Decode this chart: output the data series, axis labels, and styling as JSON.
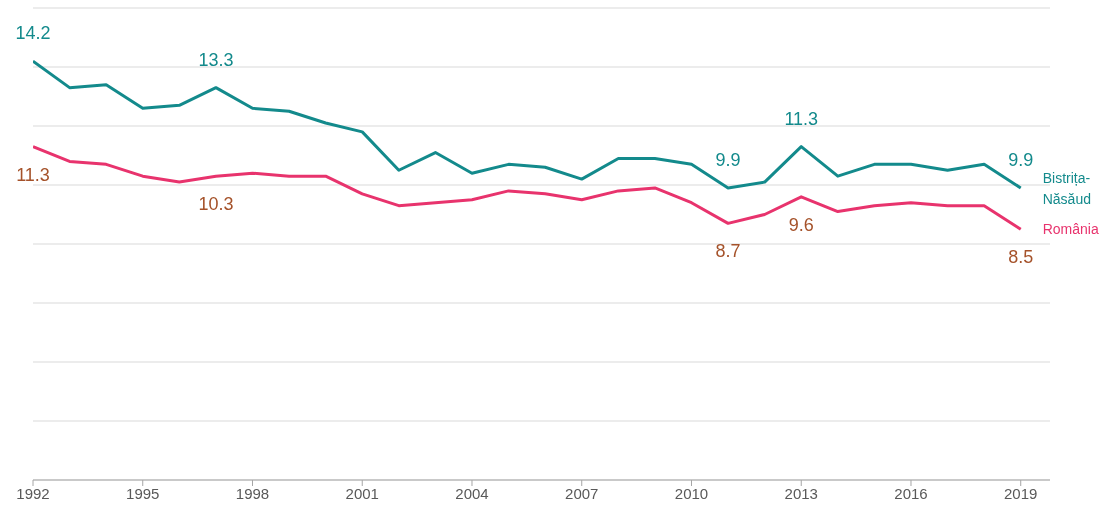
{
  "chart_data": {
    "type": "line",
    "x": [
      1992,
      1993,
      1994,
      1995,
      1996,
      1997,
      1998,
      1999,
      2000,
      2001,
      2002,
      2003,
      2004,
      2005,
      2006,
      2007,
      2008,
      2009,
      2010,
      2011,
      2012,
      2013,
      2014,
      2015,
      2016,
      2017,
      2018,
      2019
    ],
    "series": [
      {
        "name": "Bistrița-Năsăud",
        "color": "#138a8c",
        "values": [
          14.2,
          13.3,
          13.4,
          12.6,
          12.7,
          13.3,
          12.6,
          12.5,
          12.1,
          11.8,
          10.5,
          11.1,
          10.4,
          10.7,
          10.6,
          10.2,
          10.9,
          10.9,
          10.7,
          9.9,
          10.1,
          11.3,
          10.3,
          10.7,
          10.7,
          10.5,
          10.7,
          9.9
        ],
        "value_labels": [
          "14.2",
          null,
          null,
          null,
          null,
          "13.3",
          null,
          null,
          null,
          null,
          null,
          null,
          null,
          null,
          null,
          null,
          null,
          null,
          null,
          "9.9",
          null,
          "11.3",
          null,
          null,
          null,
          null,
          null,
          "9.9"
        ]
      },
      {
        "name": "România",
        "color": "#e8336d",
        "values": [
          11.3,
          10.8,
          10.7,
          10.3,
          10.1,
          10.3,
          10.4,
          10.3,
          10.3,
          9.7,
          9.3,
          9.4,
          9.5,
          9.8,
          9.7,
          9.5,
          9.8,
          9.9,
          9.4,
          8.7,
          9.0,
          9.6,
          9.1,
          9.3,
          9.4,
          9.3,
          9.3,
          8.5
        ],
        "value_labels": [
          "11.3",
          null,
          null,
          null,
          null,
          "10.3",
          null,
          null,
          null,
          null,
          null,
          null,
          null,
          null,
          null,
          null,
          null,
          null,
          null,
          "8.7",
          null,
          "9.6",
          null,
          null,
          null,
          null,
          null,
          "8.5"
        ]
      }
    ],
    "xlim": [
      1992,
      2019.8
    ],
    "xticks": [
      1992,
      1995,
      1998,
      2001,
      2004,
      2007,
      2010,
      2013,
      2016,
      2019
    ],
    "ylim": [
      0,
      16
    ],
    "yticks": [
      {
        "value": 0,
        "label": null
      },
      {
        "value": 2,
        "label": null
      },
      {
        "value": 4,
        "label": null
      },
      {
        "value": 6,
        "label": null
      },
      {
        "value": 8,
        "label": null
      },
      {
        "value": 10,
        "label": null
      },
      {
        "value": 12,
        "label": null
      },
      {
        "value": 14,
        "label": null
      },
      {
        "value": 16,
        "label": null
      }
    ],
    "tick_labels": "x",
    "grid": "y",
    "legend": false,
    "marker": "none",
    "line_style": "solid"
  }
}
